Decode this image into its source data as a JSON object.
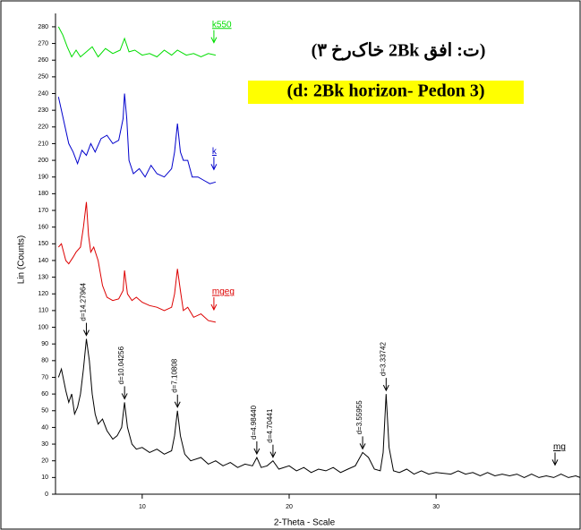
{
  "chart_data": {
    "type": "line",
    "title": "(ت: افق 2Bk خاک‌رخ ۳)",
    "subtitle": "(d: 2Bk horizon- Pedon 3)",
    "xlabel": "2-Theta - Scale",
    "ylabel": "Lin (Counts)",
    "xlim": [
      4.1,
      39.8
    ],
    "ylim": [
      0,
      288
    ],
    "xticks": [
      10,
      20,
      30
    ],
    "yticks": [
      0,
      10,
      20,
      30,
      40,
      50,
      60,
      70,
      80,
      90,
      100,
      110,
      120,
      130,
      140,
      150,
      160,
      170,
      180,
      190,
      200,
      210,
      220,
      230,
      240,
      250,
      260,
      270,
      280
    ],
    "series": [
      {
        "name": "k550",
        "color": "#00dd00",
        "x": [
          4.3,
          4.6,
          4.9,
          5.2,
          5.5,
          5.8,
          6.2,
          6.6,
          7.0,
          7.5,
          8.0,
          8.5,
          8.8,
          9.1,
          9.5,
          10,
          10.5,
          11,
          11.5,
          12,
          12.4,
          13,
          13.5,
          14,
          14.5,
          15
        ],
        "values": [
          280,
          275,
          268,
          262,
          266,
          262,
          265,
          268,
          262,
          267,
          264,
          266,
          273,
          265,
          266,
          263,
          264,
          262,
          266,
          263,
          266,
          263,
          264,
          262,
          264,
          263
        ]
      },
      {
        "name": "k",
        "color": "#0000cc",
        "x": [
          4.3,
          4.5,
          4.8,
          5.0,
          5.3,
          5.6,
          5.9,
          6.2,
          6.5,
          6.8,
          7.2,
          7.6,
          8.0,
          8.4,
          8.7,
          8.8,
          8.95,
          9.1,
          9.4,
          9.8,
          10.2,
          10.6,
          11,
          11.5,
          12.0,
          12.2,
          12.4,
          12.6,
          12.8,
          13.1,
          13.4,
          13.8,
          14.2,
          14.6,
          15
        ],
        "values": [
          238,
          230,
          218,
          210,
          205,
          198,
          206,
          203,
          210,
          205,
          213,
          215,
          210,
          212,
          225,
          240,
          225,
          200,
          192,
          195,
          190,
          197,
          192,
          190,
          195,
          205,
          222,
          205,
          200,
          200,
          190,
          190,
          188,
          186,
          187
        ]
      },
      {
        "name": "mgeg",
        "color": "#dd0000",
        "x": [
          4.3,
          4.5,
          4.8,
          5.0,
          5.3,
          5.5,
          5.8,
          6.0,
          6.2,
          6.35,
          6.5,
          6.7,
          7.0,
          7.3,
          7.6,
          8.0,
          8.4,
          8.7,
          8.8,
          9.0,
          9.3,
          9.6,
          10.0,
          10.5,
          11,
          11.5,
          12.0,
          12.2,
          12.4,
          12.6,
          12.8,
          13.1,
          13.5,
          14,
          14.5,
          15
        ],
        "values": [
          148,
          150,
          140,
          138,
          142,
          145,
          148,
          160,
          175,
          155,
          145,
          148,
          140,
          125,
          118,
          116,
          117,
          122,
          134,
          120,
          116,
          118,
          115,
          113,
          112,
          110,
          112,
          120,
          135,
          122,
          110,
          112,
          106,
          108,
          104,
          103
        ]
      },
      {
        "name": "mg",
        "color": "#000000",
        "x": [
          4.3,
          4.5,
          4.8,
          5.0,
          5.2,
          5.4,
          5.6,
          5.8,
          6.0,
          6.2,
          6.4,
          6.6,
          6.8,
          7.0,
          7.3,
          7.6,
          8.0,
          8.3,
          8.6,
          8.8,
          9.0,
          9.3,
          9.6,
          10.0,
          10.5,
          11.0,
          11.5,
          12.0,
          12.2,
          12.4,
          12.6,
          12.9,
          13.3,
          14,
          14.5,
          15,
          15.5,
          16,
          16.5,
          17,
          17.5,
          17.8,
          18.1,
          18.5,
          18.9,
          19.3,
          20,
          20.5,
          21,
          21.5,
          22,
          22.5,
          23,
          23.5,
          24,
          24.5,
          25,
          25.4,
          25.8,
          26.2,
          26.4,
          26.6,
          26.8,
          27.1,
          27.5,
          28,
          28.5,
          29,
          29.5,
          30,
          31,
          31.5,
          32,
          32.5,
          33,
          33.5,
          34,
          34.5,
          35,
          35.5,
          36,
          36.5,
          37,
          37.5,
          38,
          38.5,
          39,
          39.5,
          39.8
        ],
        "values": [
          70,
          75,
          62,
          55,
          60,
          48,
          52,
          60,
          75,
          93,
          80,
          60,
          48,
          42,
          45,
          38,
          33,
          35,
          40,
          55,
          40,
          30,
          27,
          28,
          25,
          27,
          24,
          26,
          35,
          50,
          35,
          24,
          20,
          22,
          18,
          20,
          17,
          19,
          16,
          18,
          17,
          22,
          16,
          17,
          20,
          15,
          17,
          14,
          16,
          13,
          15,
          14,
          16,
          13,
          15,
          17,
          25,
          22,
          15,
          14,
          25,
          60,
          28,
          14,
          13,
          15,
          12,
          14,
          12,
          13,
          12,
          14,
          12,
          13,
          11,
          13,
          11,
          12,
          11,
          12,
          10,
          12,
          10,
          11,
          10,
          12,
          10,
          11,
          10
        ]
      }
    ],
    "peak_labels": [
      {
        "x": 6.2,
        "label": "d=14.27964"
      },
      {
        "x": 8.8,
        "label": "d=10.04256"
      },
      {
        "x": 12.4,
        "label": "d=7.10808"
      },
      {
        "x": 17.8,
        "label": "d=4.98440"
      },
      {
        "x": 18.9,
        "label": "d=4.70441"
      },
      {
        "x": 25,
        "label": "d=3.55955"
      },
      {
        "x": 26.6,
        "label": "d=3.33742"
      }
    ]
  }
}
